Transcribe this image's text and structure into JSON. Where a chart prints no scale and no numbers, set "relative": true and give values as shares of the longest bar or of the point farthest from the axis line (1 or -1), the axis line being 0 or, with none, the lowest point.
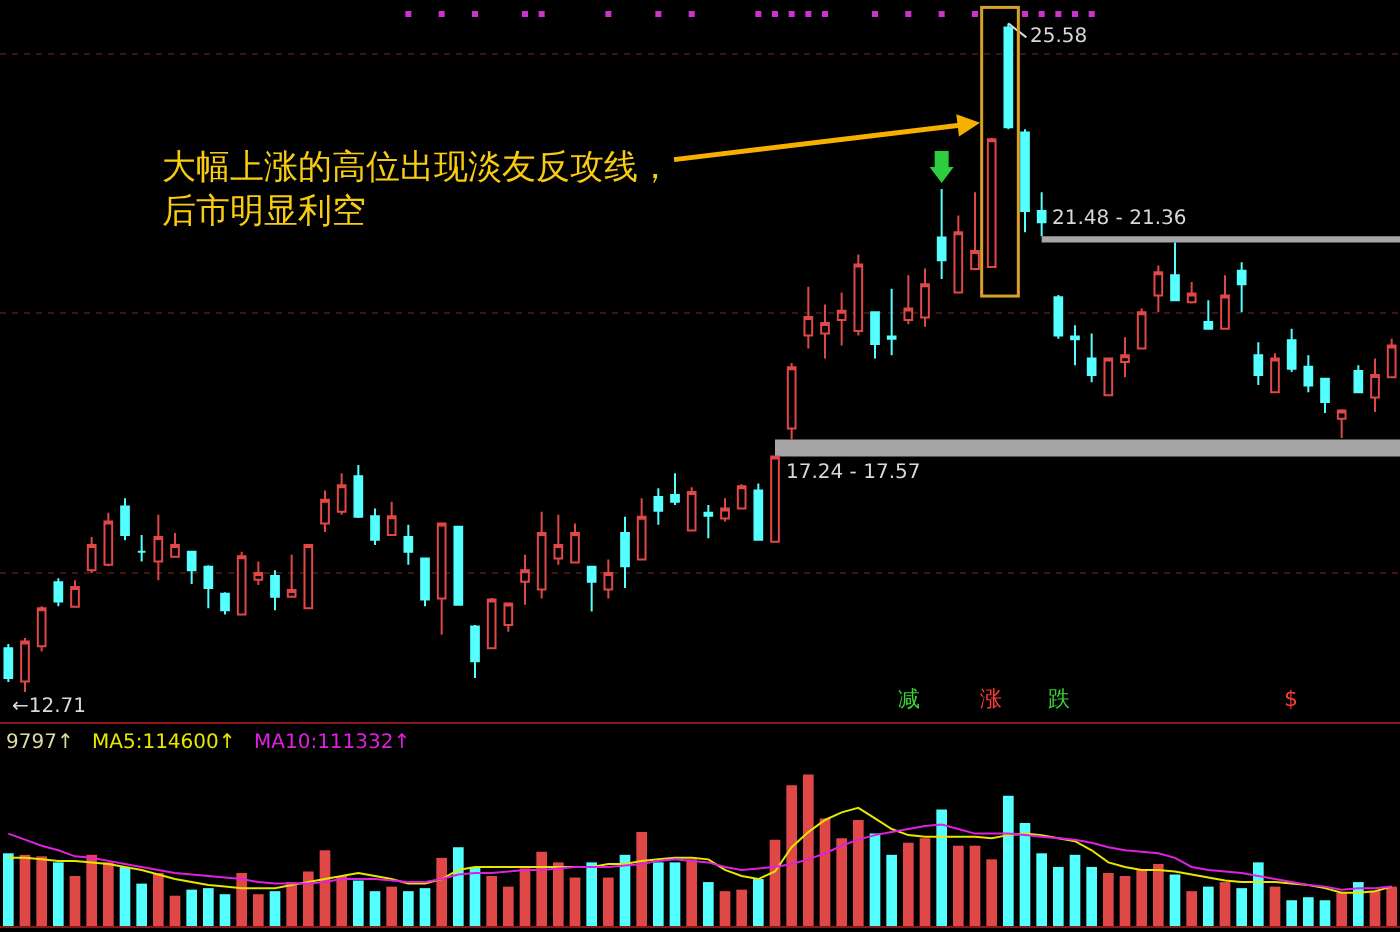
{
  "chart_data": [
    {
      "type": "candlestick",
      "categories": [
        null,
        null,
        null,
        null,
        null,
        null,
        null,
        null,
        null,
        null,
        null,
        null,
        null,
        null,
        null,
        null,
        null,
        null,
        null,
        null,
        null,
        null,
        null,
        null,
        null,
        null,
        null,
        null,
        null,
        null,
        null,
        null,
        null,
        null,
        null,
        null,
        null,
        null,
        null,
        null,
        null,
        null,
        null,
        null,
        null,
        null,
        null,
        null,
        null,
        null,
        null,
        null,
        null,
        null,
        null,
        null,
        null,
        null,
        null,
        null,
        null,
        null,
        null,
        null,
        null,
        null,
        null,
        null,
        null,
        null,
        null,
        null,
        null,
        null,
        null,
        null,
        null,
        null,
        null,
        null,
        null,
        null,
        null,
        null
      ],
      "ohlc": [
        [
          13.55,
          13.63,
          12.9,
          12.98
        ],
        [
          12.91,
          13.75,
          12.71,
          13.68
        ],
        [
          13.59,
          14.36,
          13.49,
          14.32
        ],
        [
          14.82,
          14.9,
          14.36,
          14.45
        ],
        [
          14.35,
          14.86,
          14.33,
          14.73
        ],
        [
          15.05,
          15.69,
          15.0,
          15.54
        ],
        [
          15.16,
          16.16,
          15.13,
          15.99
        ],
        [
          16.28,
          16.44,
          15.63,
          15.73
        ],
        [
          15.41,
          15.73,
          15.22,
          15.41
        ],
        [
          15.22,
          16.12,
          14.86,
          15.69
        ],
        [
          15.31,
          15.77,
          15.31,
          15.54
        ],
        [
          15.41,
          15.41,
          14.79,
          15.05
        ],
        [
          15.12,
          15.15,
          14.32,
          14.71
        ],
        [
          14.6,
          14.63,
          14.2,
          14.28
        ],
        [
          14.2,
          15.41,
          14.2,
          15.32
        ],
        [
          14.87,
          15.22,
          14.77,
          15.0
        ],
        [
          14.94,
          15.05,
          14.28,
          14.54
        ],
        [
          14.54,
          15.35,
          14.54,
          14.67
        ],
        [
          14.32,
          15.56,
          14.3,
          15.54
        ],
        [
          15.95,
          16.59,
          15.79,
          16.41
        ],
        [
          16.18,
          16.92,
          16.12,
          16.69
        ],
        [
          16.86,
          17.08,
          16.06,
          16.08
        ],
        [
          16.09,
          16.24,
          15.54,
          15.64
        ],
        [
          15.73,
          16.37,
          15.73,
          16.09
        ],
        [
          15.69,
          15.93,
          15.16,
          15.41
        ],
        [
          15.28,
          15.3,
          14.36,
          14.49
        ],
        [
          14.51,
          15.97,
          13.81,
          15.95
        ],
        [
          15.89,
          15.9,
          14.37,
          14.39
        ],
        [
          13.97,
          14.0,
          12.98,
          13.3
        ],
        [
          13.55,
          14.52,
          13.53,
          14.49
        ],
        [
          14.0,
          14.43,
          13.87,
          14.41
        ],
        [
          14.83,
          15.35,
          14.39,
          15.05
        ],
        [
          14.68,
          16.18,
          14.51,
          15.77
        ],
        [
          15.28,
          16.12,
          15.16,
          15.54
        ],
        [
          15.2,
          15.95,
          15.18,
          15.77
        ],
        [
          15.12,
          15.14,
          14.26,
          14.83
        ],
        [
          14.68,
          15.26,
          14.51,
          15.0
        ],
        [
          15.77,
          16.08,
          14.71,
          15.13
        ],
        [
          15.26,
          16.44,
          15.24,
          16.08
        ],
        [
          16.46,
          16.63,
          15.93,
          16.2
        ],
        [
          16.5,
          16.92,
          16.31,
          16.37
        ],
        [
          15.82,
          16.65,
          15.8,
          16.56
        ],
        [
          16.16,
          16.31,
          15.67,
          16.1
        ],
        [
          16.05,
          16.44,
          15.99,
          16.24
        ],
        [
          16.24,
          16.71,
          16.22,
          16.67
        ],
        [
          16.59,
          16.72,
          15.62,
          15.64
        ],
        [
          15.6,
          17.24,
          15.58,
          17.24
        ],
        [
          17.78,
          19.04,
          17.57,
          18.96
        ],
        [
          19.57,
          20.51,
          19.32,
          19.93
        ],
        [
          19.61,
          20.17,
          19.13,
          19.81
        ],
        [
          19.87,
          20.4,
          19.38,
          20.05
        ],
        [
          19.66,
          21.13,
          19.57,
          20.94
        ],
        [
          20.02,
          20.04,
          19.13,
          19.41
        ],
        [
          19.55,
          20.47,
          19.19,
          19.51
        ],
        [
          19.87,
          20.73,
          19.79,
          20.09
        ],
        [
          19.92,
          20.86,
          19.74,
          20.56
        ],
        [
          21.46,
          22.39,
          20.66,
          21.02
        ],
        [
          20.4,
          21.88,
          20.38,
          21.56
        ],
        [
          20.85,
          22.33,
          20.83,
          21.2
        ],
        [
          20.89,
          23.38,
          20.87,
          23.35
        ],
        [
          25.5,
          25.58,
          23.54,
          23.58
        ],
        [
          23.48,
          23.54,
          21.56,
          21.97
        ],
        [
          21.97,
          22.33,
          21.48,
          21.75
        ],
        [
          20.31,
          20.35,
          19.51,
          19.57
        ],
        [
          19.55,
          19.77,
          19.0,
          19.5
        ],
        [
          19.13,
          19.61,
          18.67,
          18.81
        ],
        [
          18.42,
          19.15,
          18.4,
          19.13
        ],
        [
          19.06,
          19.54,
          18.77,
          19.19
        ],
        [
          19.32,
          20.09,
          19.3,
          20.02
        ],
        [
          20.34,
          20.92,
          20.02,
          20.79
        ],
        [
          20.73,
          21.36,
          20.23,
          20.25
        ],
        [
          20.21,
          20.6,
          20.19,
          20.38
        ],
        [
          19.83,
          20.25,
          19.68,
          19.7
        ],
        [
          19.7,
          20.73,
          19.68,
          20.34
        ],
        [
          20.82,
          20.98,
          20.02,
          20.56
        ],
        [
          19.19,
          19.44,
          18.62,
          18.81
        ],
        [
          18.48,
          19.23,
          18.46,
          19.13
        ],
        [
          19.48,
          19.7,
          18.87,
          18.93
        ],
        [
          18.97,
          19.19,
          18.48,
          18.61
        ],
        [
          18.74,
          18.76,
          18.08,
          18.29
        ],
        [
          17.97,
          18.15,
          17.6,
          18.13
        ],
        [
          18.89,
          19.0,
          18.46,
          18.48
        ],
        [
          18.38,
          19.13,
          18.1,
          18.81
        ],
        [
          18.77,
          19.51,
          18.75,
          19.38
        ]
      ],
      "bands": [
        {
          "axis": "y",
          "from": 17.24,
          "to": 17.57,
          "label": "17.24 - 17.57",
          "color": "#a6a6a6"
        },
        {
          "axis": "y",
          "from": 21.36,
          "to": 21.48,
          "label": "21.48 - 21.36",
          "color": "#a6a6a6"
        }
      ],
      "annotations": [
        "大幅上涨的高位出现淡友反攻线，后市明显利空",
        "25.58",
        "←12.71",
        "减",
        "涨",
        "跌",
        "$"
      ],
      "grid": "y"
    },
    {
      "type": "bar",
      "categories": [
        null,
        null,
        null,
        null,
        null,
        null,
        null,
        null,
        null,
        null,
        null,
        null,
        null,
        null,
        null,
        null,
        null,
        null,
        null,
        null,
        null,
        null,
        null,
        null,
        null,
        null,
        null,
        null,
        null,
        null,
        null,
        null,
        null,
        null,
        null,
        null,
        null,
        null,
        null,
        null,
        null,
        null,
        null,
        null,
        null,
        null,
        null,
        null,
        null,
        null,
        null,
        null,
        null,
        null,
        null,
        null,
        null,
        null,
        null,
        null,
        null,
        null,
        null,
        null,
        null,
        null,
        null,
        null,
        null,
        null,
        null,
        null,
        null,
        null,
        null,
        null,
        null,
        null,
        null,
        null,
        null,
        null,
        null,
        null
      ],
      "relative": true,
      "series": [
        {
          "type": "bar",
          "colors": [
            "#54ffff",
            "#e04848",
            "#e04848",
            "#54ffff",
            "#e04848",
            "#e04848",
            "#e04848",
            "#54ffff",
            "#54ffff",
            "#e04848",
            "#e04848",
            "#54ffff",
            "#54ffff",
            "#54ffff",
            "#e04848",
            "#e04848",
            "#54ffff",
            "#e04848",
            "#e04848",
            "#e04848",
            "#e04848",
            "#54ffff",
            "#54ffff",
            "#e04848",
            "#54ffff",
            "#54ffff",
            "#e04848",
            "#54ffff",
            "#54ffff",
            "#e04848",
            "#e04848",
            "#e04848",
            "#e04848",
            "#e04848",
            "#e04848",
            "#54ffff",
            "#e04848",
            "#54ffff",
            "#e04848",
            "#54ffff",
            "#54ffff",
            "#e04848",
            "#54ffff",
            "#e04848",
            "#e04848",
            "#54ffff",
            "#e04848",
            "#e04848",
            "#e04848",
            "#e04848",
            "#e04848",
            "#e04848",
            "#54ffff",
            "#54ffff",
            "#e04848",
            "#e04848",
            "#54ffff",
            "#e04848",
            "#e04848",
            "#e04848",
            "#54ffff",
            "#54ffff",
            "#54ffff",
            "#54ffff",
            "#54ffff",
            "#54ffff",
            "#e04848",
            "#e04848",
            "#e04848",
            "#e04848",
            "#54ffff",
            "#e04848",
            "#54ffff",
            "#e04848",
            "#54ffff",
            "#54ffff",
            "#e04848",
            "#54ffff",
            "#54ffff",
            "#54ffff",
            "#e04848",
            "#54ffff",
            "#e04848",
            "#e04848"
          ],
          "values": [
            0.48,
            0.47,
            0.46,
            0.42,
            0.33,
            0.47,
            0.42,
            0.39,
            0.28,
            0.35,
            0.2,
            0.24,
            0.25,
            0.21,
            0.35,
            0.21,
            0.23,
            0.29,
            0.36,
            0.5,
            0.33,
            0.3,
            0.23,
            0.26,
            0.23,
            0.25,
            0.45,
            0.52,
            0.39,
            0.33,
            0.26,
            0.38,
            0.49,
            0.42,
            0.32,
            0.42,
            0.32,
            0.47,
            0.62,
            0.42,
            0.42,
            0.44,
            0.29,
            0.23,
            0.24,
            0.31,
            0.57,
            0.93,
            1,
            0.71,
            0.58,
            0.7,
            0.61,
            0.47,
            0.55,
            0.58,
            0.77,
            0.53,
            0.53,
            0.44,
            0.86,
            0.68,
            0.48,
            0.39,
            0.47,
            0.39,
            0.35,
            0.33,
            0.37,
            0.41,
            0.34,
            0.23,
            0.26,
            0.29,
            0.25,
            0.42,
            0.26,
            0.17,
            0.19,
            0.17,
            0.22,
            0.29,
            0.23,
            0.26
          ]
        },
        {
          "type": "line",
          "name": "MA5:114600↑",
          "color": "#e6e600",
          "values": [
            0.45,
            0.45,
            0.44,
            0.43,
            0.43,
            0.42,
            0.41,
            0.39,
            0.37,
            0.34,
            0.31,
            0.29,
            0.27,
            0.26,
            0.25,
            0.25,
            0.25,
            0.27,
            0.29,
            0.31,
            0.33,
            0.35,
            0.33,
            0.31,
            0.28,
            0.28,
            0.31,
            0.37,
            0.39,
            0.39,
            0.39,
            0.39,
            0.39,
            0.39,
            0.39,
            0.39,
            0.41,
            0.41,
            0.43,
            0.44,
            0.45,
            0.45,
            0.44,
            0.37,
            0.33,
            0.31,
            0.36,
            0.52,
            0.62,
            0.7,
            0.75,
            0.78,
            0.71,
            0.64,
            0.6,
            0.59,
            0.59,
            0.59,
            0.59,
            0.58,
            0.6,
            0.61,
            0.6,
            0.58,
            0.56,
            0.5,
            0.42,
            0.39,
            0.37,
            0.37,
            0.36,
            0.34,
            0.32,
            0.3,
            0.29,
            0.29,
            0.29,
            0.28,
            0.27,
            0.25,
            0.22,
            0.22,
            0.23,
            0.26
          ]
        },
        {
          "type": "line",
          "name": "MA10:111332↑",
          "color": "#e020e0",
          "values": [
            0.61,
            0.57,
            0.53,
            0.5,
            0.46,
            0.45,
            0.43,
            0.41,
            0.39,
            0.37,
            0.35,
            0.34,
            0.33,
            0.32,
            0.31,
            0.29,
            0.28,
            0.28,
            0.28,
            0.29,
            0.31,
            0.31,
            0.31,
            0.3,
            0.29,
            0.29,
            0.31,
            0.34,
            0.35,
            0.35,
            0.36,
            0.37,
            0.37,
            0.38,
            0.39,
            0.39,
            0.39,
            0.4,
            0.41,
            0.43,
            0.44,
            0.43,
            0.42,
            0.39,
            0.37,
            0.38,
            0.39,
            0.41,
            0.44,
            0.48,
            0.53,
            0.57,
            0.6,
            0.62,
            0.64,
            0.66,
            0.67,
            0.64,
            0.61,
            0.61,
            0.61,
            0.6,
            0.59,
            0.58,
            0.57,
            0.55,
            0.52,
            0.5,
            0.49,
            0.48,
            0.45,
            0.39,
            0.37,
            0.36,
            0.35,
            0.33,
            0.31,
            0.29,
            0.27,
            0.26,
            0.24,
            0.25,
            0.25,
            0.26
          ]
        }
      ],
      "annotations": [
        "9797↑"
      ]
    }
  ]
}
